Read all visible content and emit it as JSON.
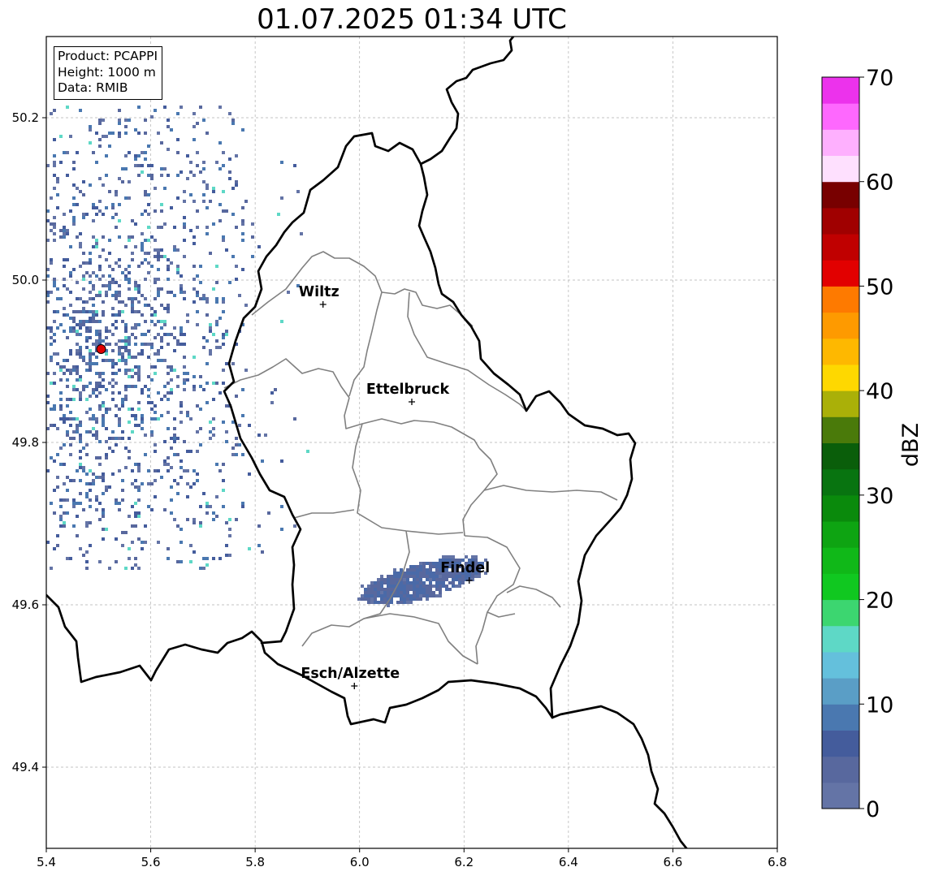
{
  "title": "01.07.2025 01:34 UTC",
  "info_box": {
    "product": "Product: PCAPPI",
    "height": "Height: 1000 m",
    "source": "Data: RMIB"
  },
  "map": {
    "lon_range": [
      5.4,
      6.8
    ],
    "lat_range": [
      49.3,
      50.3
    ],
    "x_ticks": [
      "5.4",
      "5.6",
      "5.8",
      "6.0",
      "6.2",
      "6.4",
      "6.6",
      "6.8"
    ],
    "y_ticks": [
      "49.4",
      "49.6",
      "49.8",
      "50.0",
      "50.2"
    ],
    "grid": true,
    "cities": [
      {
        "name": "Wiltz",
        "lon": 5.93,
        "lat": 49.97
      },
      {
        "name": "Ettelbruck",
        "lon": 6.1,
        "lat": 49.85
      },
      {
        "name": "Findel",
        "lon": 6.21,
        "lat": 49.63
      },
      {
        "name": "Esch/Alzette",
        "lon": 5.99,
        "lat": 49.5
      }
    ],
    "radar_site": {
      "lon": 5.505,
      "lat": 49.915,
      "color": "#e00000"
    }
  },
  "colorbar": {
    "label": "dBZ",
    "ticks": [
      "0",
      "10",
      "20",
      "30",
      "40",
      "50",
      "60",
      "70"
    ],
    "min": 0,
    "max": 70,
    "step": 2.5,
    "colors": [
      "#6474a6",
      "#58689e",
      "#445c9c",
      "#4a78b0",
      "#5a9ec6",
      "#64c0dc",
      "#5ed8c6",
      "#3cd670",
      "#10c820",
      "#10b818",
      "#0ea412",
      "#0a8a0c",
      "#087410",
      "#0a5e0a",
      "#4a7a0a",
      "#aab008",
      "#fed800",
      "#feb800",
      "#fe9a00",
      "#fe7a00",
      "#e20000",
      "#c00000",
      "#a00000",
      "#780000",
      "#fee0fe",
      "#feb0fe",
      "#fe68fe",
      "#ec32ec"
    ]
  }
}
